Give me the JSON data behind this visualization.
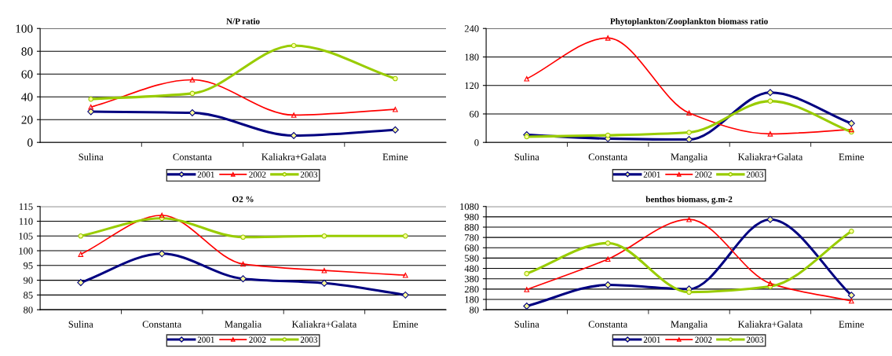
{
  "chart_data": [
    {
      "type": "line",
      "title": "N/P ratio",
      "categories": [
        "Sulina",
        "Constanta",
        "Kaliakra+Galata",
        "Emine"
      ],
      "ylim": [
        0,
        100
      ],
      "yticks": [
        0,
        20,
        40,
        60,
        80,
        100
      ],
      "grid": "y",
      "legend": "bottom",
      "series": [
        {
          "name": "2001",
          "color": "#000080",
          "marker": "diamond",
          "values": [
            27,
            26,
            6,
            11
          ]
        },
        {
          "name": "2002",
          "color": "#ff0000",
          "marker": "triangle",
          "values": [
            31,
            55,
            24,
            29
          ]
        },
        {
          "name": "2003",
          "color": "#99cc00",
          "marker": "circle",
          "values": [
            38,
            43,
            85,
            56
          ]
        }
      ]
    },
    {
      "type": "line",
      "title": "Phytoplankton/Zooplankton biomass ratio",
      "categories": [
        "Sulina",
        "Constanta",
        "Mangalia",
        "Kaliakra+Galata",
        "Emine"
      ],
      "ylim": [
        0,
        240
      ],
      "yticks": [
        0,
        60,
        120,
        180,
        240
      ],
      "grid": "y",
      "legend": "bottom",
      "series": [
        {
          "name": "2001",
          "color": "#000080",
          "marker": "diamond",
          "values": [
            16,
            8,
            6,
            105,
            40
          ]
        },
        {
          "name": "2002",
          "color": "#ff0000",
          "marker": "triangle",
          "values": [
            134,
            220,
            62,
            18,
            27
          ]
        },
        {
          "name": "2003",
          "color": "#99cc00",
          "marker": "circle",
          "values": [
            12,
            15,
            21,
            87,
            22
          ]
        }
      ]
    },
    {
      "type": "line",
      "title": "O2 %",
      "categories": [
        "Sulina",
        "Constanta",
        "Mangalia",
        "Kaliakra+Galata",
        "Emine"
      ],
      "ylim": [
        80,
        115
      ],
      "yticks": [
        80,
        85,
        90,
        95,
        100,
        105,
        110,
        115
      ],
      "grid": "y",
      "legend": "bottom",
      "series": [
        {
          "name": "2001",
          "color": "#000080",
          "marker": "diamond",
          "values": [
            89.2,
            99,
            90.5,
            89,
            85
          ]
        },
        {
          "name": "2002",
          "color": "#ff0000",
          "marker": "triangle",
          "values": [
            98.8,
            112,
            95.5,
            93.3,
            91.7
          ]
        },
        {
          "name": "2003",
          "color": "#99cc00",
          "marker": "circle",
          "values": [
            105,
            111,
            104.6,
            105,
            105
          ]
        }
      ]
    },
    {
      "type": "line",
      "title": "benthos biomass, g.m-2",
      "categories": [
        "Sulina",
        "Constanta",
        "Mangalia",
        "Kaliakra+Galata",
        "Emine"
      ],
      "ylim": [
        80,
        1080
      ],
      "yticks": [
        80,
        180,
        280,
        380,
        480,
        580,
        680,
        780,
        880,
        980,
        1080
      ],
      "grid": "y",
      "legend": "bottom",
      "series": [
        {
          "name": "2001",
          "color": "#000080",
          "marker": "diamond",
          "values": [
            115,
            320,
            280,
            955,
            220
          ]
        },
        {
          "name": "2002",
          "color": "#ff0000",
          "marker": "triangle",
          "values": [
            275,
            570,
            955,
            335,
            165
          ]
        },
        {
          "name": "2003",
          "color": "#99cc00",
          "marker": "circle",
          "values": [
            430,
            725,
            250,
            305,
            840
          ]
        }
      ]
    }
  ]
}
